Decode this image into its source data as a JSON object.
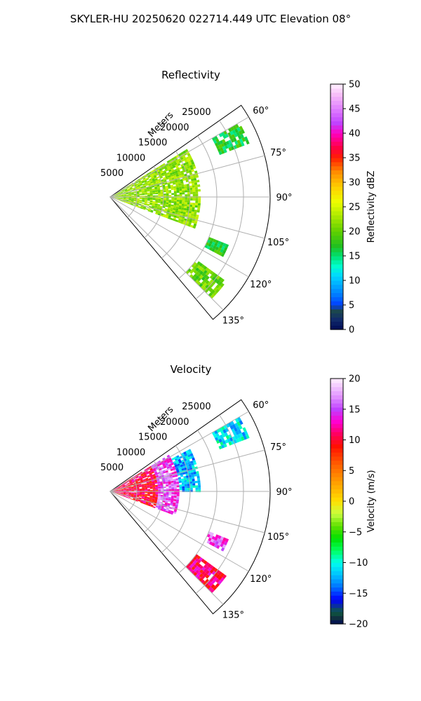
{
  "figure": {
    "suptitle": "SKYLER-HU  20250620  022714.449 UTC Elevation 08°"
  },
  "chart_data": [
    {
      "type": "heatmap",
      "projection": "polar-sector",
      "title": "Reflectivity",
      "radial_label": "Meters",
      "radial_ticks": [
        5000,
        10000,
        15000,
        20000,
        25000
      ],
      "radial_tick_labels": [
        "5000",
        "10000",
        "15000",
        "20000",
        "25000"
      ],
      "rlim": [
        0,
        30000
      ],
      "theta_ticks": [
        60,
        75,
        90,
        105,
        120,
        135
      ],
      "theta_tick_labels": [
        "60°",
        "75°",
        "90°",
        "105°",
        "120°",
        "135°"
      ],
      "theta_range_deg": [
        55,
        140
      ],
      "grid": true,
      "colorbar": {
        "label": "Reflectivity dBZ",
        "vmin": 0,
        "vmax": 50,
        "ticks": [
          0,
          5,
          10,
          15,
          20,
          25,
          30,
          35,
          40,
          45,
          50
        ],
        "tick_labels": [
          "0",
          "5",
          "10",
          "15",
          "20",
          "25",
          "30",
          "35",
          "40",
          "45",
          "50"
        ],
        "colormap": "NWSRef-like (dark blue → cyan → green → yellow → red → magenta → white)"
      },
      "echo_regions": [
        {
          "az": [
            58,
            110
          ],
          "r": [
            0,
            17000
          ],
          "value": 22
        },
        {
          "az": [
            60,
            68
          ],
          "r": [
            22000,
            28000
          ],
          "value": 17
        },
        {
          "az": [
            112,
            118
          ],
          "r": [
            20000,
            24000
          ],
          "value": 17
        },
        {
          "az": [
            126,
            134
          ],
          "r": [
            20000,
            27000
          ],
          "value": 20
        }
      ]
    },
    {
      "type": "heatmap",
      "projection": "polar-sector",
      "title": "Velocity",
      "radial_label": "Meters",
      "radial_ticks": [
        5000,
        10000,
        15000,
        20000,
        25000
      ],
      "radial_tick_labels": [
        "5000",
        "10000",
        "15000",
        "20000",
        "25000"
      ],
      "rlim": [
        0,
        30000
      ],
      "theta_ticks": [
        60,
        75,
        90,
        105,
        120,
        135
      ],
      "theta_tick_labels": [
        "60°",
        "75°",
        "90°",
        "105°",
        "120°",
        "135°"
      ],
      "theta_range_deg": [
        55,
        140
      ],
      "grid": true,
      "colorbar": {
        "label": "Velocity (m/s)",
        "vmin": -20,
        "vmax": 20,
        "ticks": [
          -20,
          -15,
          -10,
          -5,
          0,
          5,
          10,
          15,
          20
        ],
        "tick_labels": [
          "−20",
          "−15",
          "−10",
          "−5",
          "0",
          "5",
          "10",
          "15",
          "20"
        ],
        "colormap": "diverging (dark green/blue → cyan → green → yellow → red → magenta → white)"
      },
      "echo_regions": [
        {
          "az": [
            58,
            110
          ],
          "r": [
            0,
            9000
          ],
          "value": 10
        },
        {
          "az": [
            58,
            110
          ],
          "r": [
            9000,
            13000
          ],
          "value": 15
        },
        {
          "az": [
            62,
            90
          ],
          "r": [
            13000,
            17000
          ],
          "value": -12
        },
        {
          "az": [
            60,
            68
          ],
          "r": [
            22000,
            28000
          ],
          "value": -11
        },
        {
          "az": [
            112,
            118
          ],
          "r": [
            20000,
            24000
          ],
          "value": 15
        },
        {
          "az": [
            126,
            134
          ],
          "r": [
            20000,
            27000
          ],
          "value": 11
        }
      ]
    }
  ]
}
